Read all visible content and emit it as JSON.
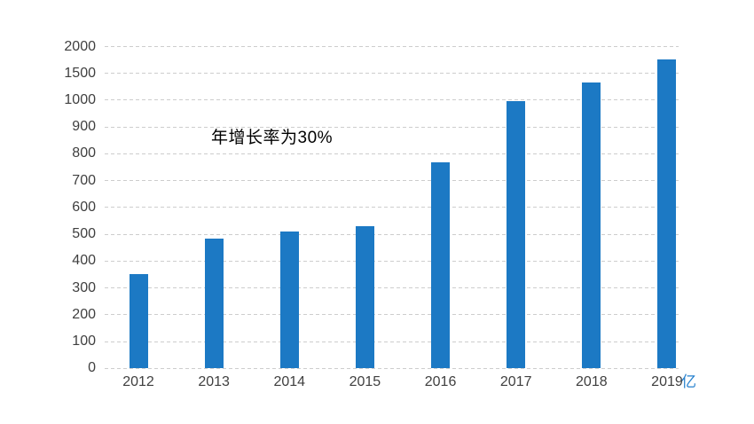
{
  "chart_data": {
    "type": "bar",
    "title": "",
    "xlabel": "",
    "ylabel": "",
    "categories": [
      "2012",
      "2013",
      "2014",
      "2015",
      "2016",
      "2017",
      "2018",
      "2019"
    ],
    "values": [
      350,
      485,
      510,
      530,
      770,
      995,
      1335,
      1760
    ],
    "annotation": "年增长率为30%",
    "unit_label": "亿",
    "y_ticks": [
      0,
      100,
      200,
      300,
      400,
      500,
      600,
      700,
      800,
      900,
      1000,
      1500,
      2000
    ],
    "y_scale": "ticks evenly spaced, piecewise linear between ticks",
    "grid": "dashed horizontal gridlines only, no axis lines, no tick marks",
    "legend": "none",
    "colors": {
      "bar": "#1C79C4",
      "gridline": "#CDCDCD",
      "axis_label": "#3F3F3F",
      "annotation": "#000000",
      "unit": "#2580CE",
      "background": "#FFFFFF"
    }
  }
}
